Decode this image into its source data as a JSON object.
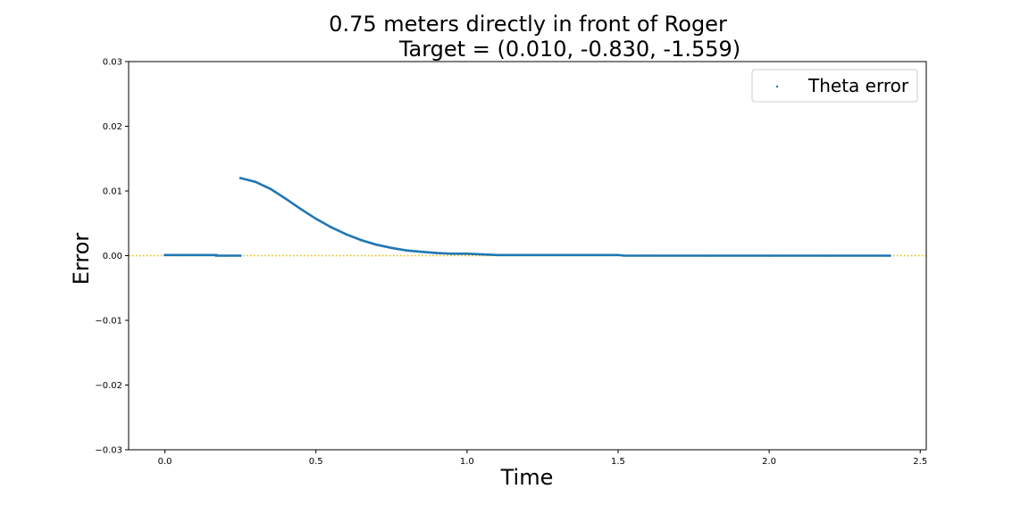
{
  "chart_data": {
    "type": "scatter",
    "title_line1": "0.75 meters directly in front of Roger",
    "title_line2": "Target = (0.010, -0.830, -1.559)",
    "xlabel": "Time",
    "ylabel": "Error",
    "xlim": [
      -0.12,
      2.52
    ],
    "ylim": [
      -0.03,
      0.03
    ],
    "x_ticks": [
      "0.0",
      "0.5",
      "1.0",
      "1.5",
      "2.0",
      "2.5"
    ],
    "x_tick_values": [
      0.0,
      0.5,
      1.0,
      1.5,
      2.0,
      2.5
    ],
    "y_ticks": [
      "0.03",
      "0.02",
      "0.01",
      "0.00",
      "−0.01",
      "−0.02",
      "−0.03"
    ],
    "y_tick_values": [
      0.03,
      0.02,
      0.01,
      0.0,
      -0.01,
      -0.02,
      -0.03
    ],
    "reference_line": {
      "y": 0.0,
      "style": "dotted",
      "color": "#e6b800"
    },
    "legend": {
      "placement": "top-right",
      "entries": [
        "Theta error"
      ]
    },
    "grid": false,
    "series": [
      {
        "name": "Theta error",
        "color": "#1f77b4",
        "x": [
          0.0,
          0.05,
          0.1,
          0.15,
          0.17,
          0.17,
          0.2,
          0.25,
          0.25,
          0.3,
          0.35,
          0.4,
          0.45,
          0.5,
          0.55,
          0.6,
          0.65,
          0.7,
          0.75,
          0.8,
          0.85,
          0.9,
          0.95,
          1.0,
          1.05,
          1.1,
          1.2,
          1.3,
          1.4,
          1.5,
          1.52,
          1.6,
          1.8,
          2.0,
          2.2,
          2.4
        ],
        "y": [
          0.0001,
          0.0001,
          0.0001,
          0.0001,
          0.0001,
          0.0,
          0.0,
          0.0,
          0.012,
          0.0114,
          0.0103,
          0.0088,
          0.0072,
          0.0057,
          0.0044,
          0.0033,
          0.0024,
          0.0017,
          0.0012,
          0.0008,
          0.0006,
          0.0004,
          0.0003,
          0.0003,
          0.0002,
          0.0001,
          0.0001,
          0.0001,
          0.0001,
          0.0001,
          0.0,
          0.0,
          0.0,
          0.0,
          0.0,
          0.0
        ]
      }
    ]
  }
}
